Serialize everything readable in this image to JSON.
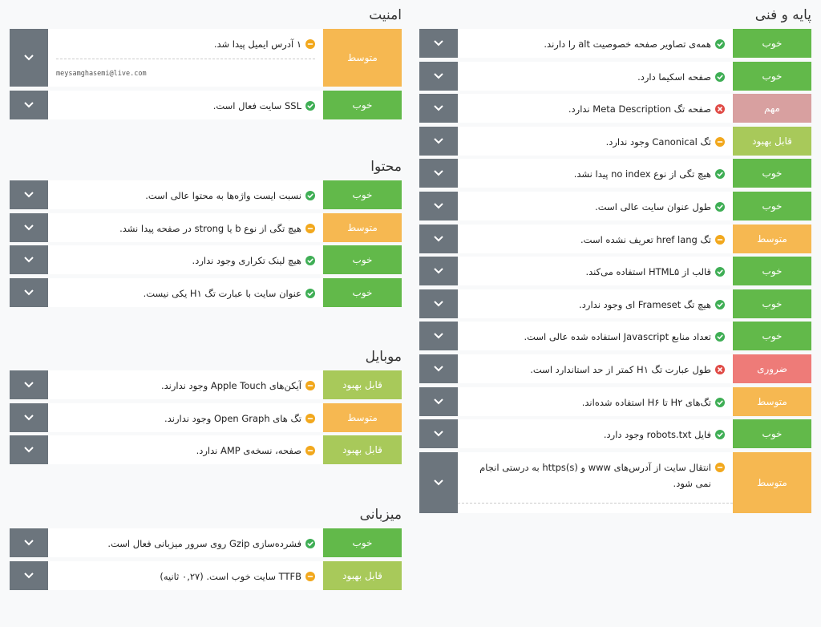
{
  "sections": [
    {
      "title": "پایه و فنی",
      "items": [
        {
          "status": "خوب",
          "color": "#62b94a",
          "icon": "ok",
          "text": "همه‌ی تصاویر صفحه خصوصیت alt را دارند."
        },
        {
          "status": "خوب",
          "color": "#62b94a",
          "icon": "ok",
          "text": "صفحه اسکیما دارد."
        },
        {
          "status": "مهم",
          "color": "#d8a0a0",
          "icon": "error",
          "text": "صفحه تگ Meta Description ندارد."
        },
        {
          "status": "قابل بهبود",
          "color": "#a8c95a",
          "icon": "warn",
          "text": "تگ Canonical وجود ندارد."
        },
        {
          "status": "خوب",
          "color": "#62b94a",
          "icon": "ok",
          "text": "هیچ تگی از نوع no index پیدا نشد."
        },
        {
          "status": "خوب",
          "color": "#62b94a",
          "icon": "ok",
          "text": "طول عنوان سایت عالی است."
        },
        {
          "status": "متوسط",
          "color": "#f6b851",
          "icon": "warn",
          "text": "تگ href lang تعریف نشده است."
        },
        {
          "status": "خوب",
          "color": "#62b94a",
          "icon": "ok",
          "text": "قالب از HTML۵ استفاده می‌کند."
        },
        {
          "status": "خوب",
          "color": "#62b94a",
          "icon": "ok",
          "text": "هیچ تگ Frameset ای وجود ندارد."
        },
        {
          "status": "خوب",
          "color": "#62b94a",
          "icon": "ok",
          "text": "تعداد منابع Javascript استفاده شده عالی است."
        },
        {
          "status": "ضروری",
          "color": "#ee7b78",
          "icon": "error",
          "text": "طول عبارت تگ H۱ کمتر از حد استاندارد است."
        },
        {
          "status": "متوسط",
          "color": "#f6b851",
          "icon": "ok",
          "text": "تگ‌های H۲ تا H۶ استفاده شده‌اند."
        },
        {
          "status": "خوب",
          "color": "#62b94a",
          "icon": "ok",
          "text": "فایل robots.txt وجود دارد."
        },
        {
          "status": "متوسط",
          "color": "#f6b851",
          "icon": "warn",
          "text": "انتقال سایت از آدرس‌های www و https(s) به درستی انجام نمی شود."
        }
      ]
    },
    {
      "title": "امنیت",
      "items": [
        {
          "status": "متوسط",
          "color": "#f6b851",
          "icon": "warn",
          "text": "۱ آدرس ایمیل پیدا شد.",
          "detail": "meysamghasemi@live.com"
        },
        {
          "status": "خوب",
          "color": "#62b94a",
          "icon": "ok",
          "text": "SSL سایت فعال است."
        }
      ]
    },
    {
      "title": "محتوا",
      "items": [
        {
          "status": "خوب",
          "color": "#62b94a",
          "icon": "ok",
          "text": "نسبت ایست واژه‌ها به محتوا عالی است."
        },
        {
          "status": "متوسط",
          "color": "#f6b851",
          "icon": "warn",
          "text": "هیچ تگی از نوع b یا strong در صفحه پیدا نشد."
        },
        {
          "status": "خوب",
          "color": "#62b94a",
          "icon": "ok",
          "text": "هیچ لینک تکراری وجود ندارد."
        },
        {
          "status": "خوب",
          "color": "#62b94a",
          "icon": "ok",
          "text": "عنوان سایت با عبارت تگ H۱ یکی نیست."
        }
      ]
    },
    {
      "title": "موبایل",
      "items": [
        {
          "status": "قابل بهبود",
          "color": "#a8c95a",
          "icon": "warn",
          "text": "آیکن‌های Apple Touch وجود ندارند."
        },
        {
          "status": "متوسط",
          "color": "#f6b851",
          "icon": "warn",
          "text": "تگ های Open Graph وجود ندارند."
        },
        {
          "status": "قابل بهبود",
          "color": "#a8c95a",
          "icon": "warn",
          "text": "صفحه، نسخه‌ی AMP ندارد."
        }
      ]
    },
    {
      "title": "میزبانی",
      "items": [
        {
          "status": "خوب",
          "color": "#62b94a",
          "icon": "ok",
          "text": "فشرده‌سازی Gzip روی سرور میزبانی فعال است."
        },
        {
          "status": "قابل بهبود",
          "color": "#a8c95a",
          "icon": "warn",
          "text": "TTFB سایت خوب است. (۰,۲۷ ثانیه)"
        }
      ]
    }
  ]
}
